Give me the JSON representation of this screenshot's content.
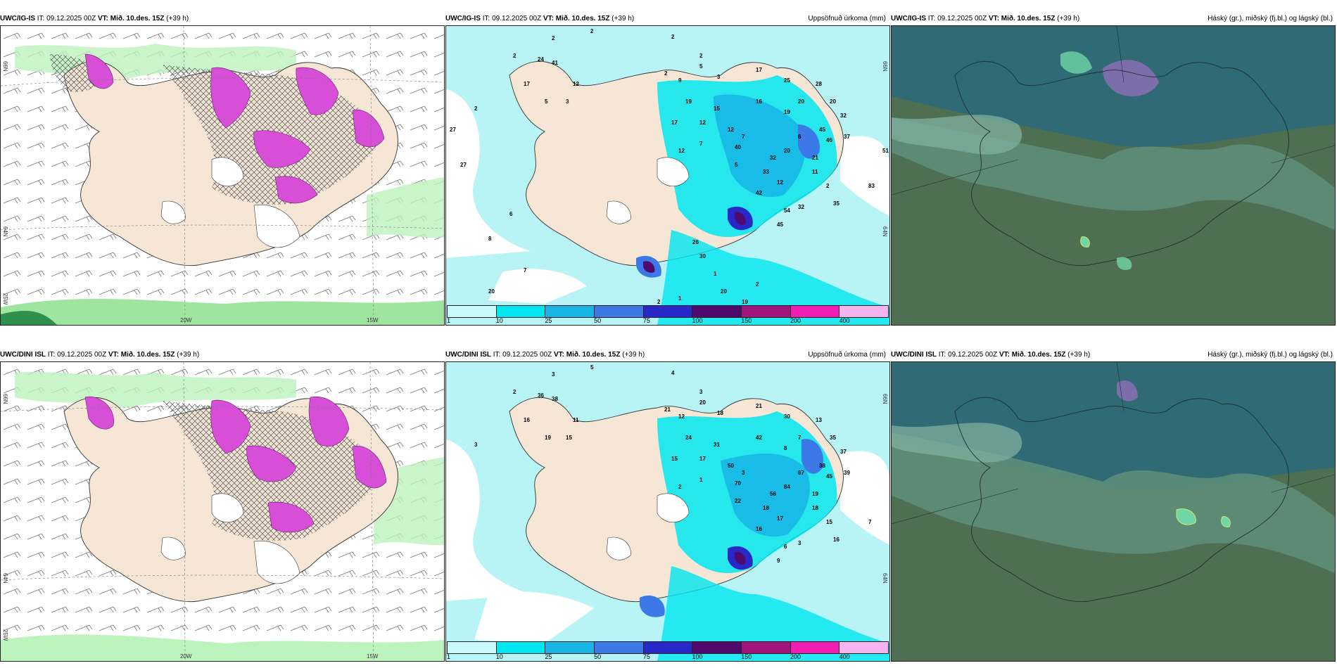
{
  "rows": [
    {
      "model": "UWC/IG-IS",
      "it": "IT: 09.12.2025 00Z",
      "vt_label": "VT:",
      "vt_value": "Mið. 10.des. 15Z",
      "lead": "(+39 h)",
      "precip_title": "Uppsöfnuð úrkoma (mm)",
      "cloud_title": "Háský (gr.), miðský (fj.bl.) og lágský (bl.)",
      "lon_labels": [
        "20W",
        "15W"
      ],
      "lat_labels": [
        "66N",
        "64N",
        "25W"
      ],
      "precip_right_lat": [
        "66N",
        "64N"
      ],
      "precip_numbers": [
        "2",
        "2",
        "2",
        "2",
        "2",
        "2",
        "24",
        "41",
        "17",
        "12",
        "5",
        "3",
        "2",
        "9",
        "5",
        "3",
        "19",
        "15",
        "17",
        "12",
        "17",
        "25",
        "16",
        "19",
        "20",
        "28",
        "20",
        "45",
        "32",
        "37",
        "46",
        "6",
        "20",
        "32",
        "40",
        "12",
        "7",
        "7",
        "12",
        "5",
        "33",
        "21",
        "42",
        "12",
        "11",
        "2",
        "35",
        "32",
        "54",
        "45",
        "83",
        "51",
        "30",
        "1",
        "1",
        "2",
        "2",
        "20",
        "19",
        "26",
        "7",
        "8",
        "27",
        "27",
        "20",
        "6"
      ]
    },
    {
      "model": "UWC/DINI ISL",
      "it": "IT: 09.12.2025 00Z",
      "vt_label": "VT:",
      "vt_value": "Mið. 10.des. 15Z",
      "lead": "(+39 h)",
      "precip_title": "Uppsöfnuð úrkoma (mm)",
      "cloud_title": "Háský (gr.), miðský (fj.bl.) og lágský (bl.)",
      "lon_labels": [
        "20W",
        "15W"
      ],
      "lat_labels": [
        "66N",
        "64N",
        "25W"
      ],
      "precip_right_lat": [
        "66N",
        "64N"
      ],
      "precip_numbers": [
        "5",
        "3",
        "4",
        "3",
        "2",
        "3",
        "36",
        "38",
        "16",
        "11",
        "19",
        "15",
        "21",
        "12",
        "20",
        "18",
        "24",
        "31",
        "15",
        "17",
        "21",
        "30",
        "42",
        "8",
        "7",
        "13",
        "35",
        "38",
        "37",
        "39",
        "45",
        "67",
        "84",
        "56",
        "70",
        "50",
        "3",
        "1",
        "2",
        "22",
        "18",
        "19",
        "16",
        "17",
        "18",
        "15",
        "16",
        "3",
        "6",
        "9",
        "7"
      ]
    }
  ],
  "colorbar": {
    "labels": [
      "1",
      "10",
      "25",
      "50",
      "75",
      "100",
      "150",
      "200",
      "400"
    ],
    "colors": [
      "#c8fafa",
      "#00e6f0",
      "#18b4e6",
      "#3c78e6",
      "#2828c8",
      "#500a6e",
      "#a0147c",
      "#f01eb4",
      "#f5b4f0"
    ]
  },
  "colors": {
    "land": "#f5e6d6",
    "sea_precip": "#b8f4f6",
    "cloud_dark": "#2f6a75",
    "cloud_mid": "#5f8f7a",
    "cloud_land": "#4f6f52",
    "snow_magenta": "#d64fd6",
    "green_light": "#bdf3bd"
  }
}
